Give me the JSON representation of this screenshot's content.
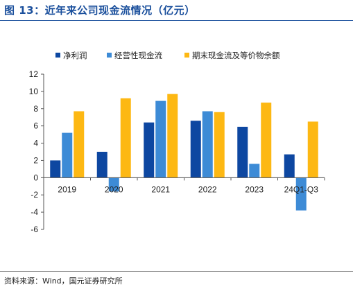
{
  "figure_title": "图 13：近年来公司现金流情况（亿元）",
  "source_note": "资料来源：Wind，国元证券研究所",
  "colors": {
    "title": "#1a4f9c",
    "series": [
      "#0d47a1",
      "#3d8bd6",
      "#fdb813"
    ]
  },
  "chart_data": {
    "type": "bar",
    "title": "",
    "xlabel": "",
    "ylabel": "",
    "categories": [
      "2019",
      "2020",
      "2021",
      "2022",
      "2023",
      "24Q1-Q3"
    ],
    "series": [
      {
        "name": "净利润",
        "values": [
          2.0,
          3.0,
          6.4,
          6.6,
          5.9,
          2.7
        ]
      },
      {
        "name": "经营性现金流",
        "values": [
          5.2,
          -1.6,
          8.9,
          7.7,
          1.6,
          -3.8
        ]
      },
      {
        "name": "期末现金流及等价物余额",
        "values": [
          7.7,
          9.2,
          9.7,
          7.6,
          8.7,
          6.5
        ]
      }
    ],
    "ylim": [
      -6,
      12
    ],
    "yticks": [
      -6,
      -4,
      -2,
      0,
      2,
      4,
      6,
      8,
      10,
      12
    ],
    "grid": false,
    "legend_position": "top"
  }
}
